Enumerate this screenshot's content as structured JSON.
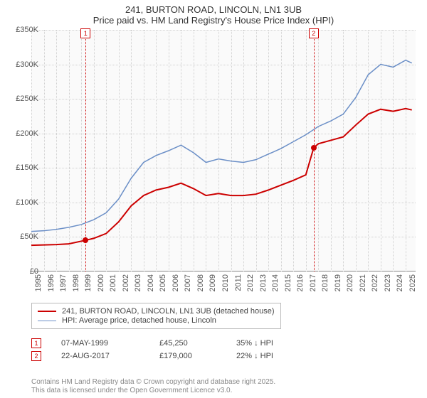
{
  "title": {
    "line1": "241, BURTON ROAD, LINCOLN, LN1 3UB",
    "line2": "Price paid vs. HM Land Registry's House Price Index (HPI)",
    "fontsize": 13,
    "color": "#333333"
  },
  "chart": {
    "type": "line",
    "background_color": "#fafafa",
    "grid_color": "#d0d0d0",
    "x_axis": {
      "min": 1995,
      "max": 2025.8,
      "ticks": [
        1995,
        1996,
        1997,
        1998,
        1999,
        2000,
        2001,
        2002,
        2003,
        2004,
        2005,
        2006,
        2007,
        2008,
        2009,
        2010,
        2011,
        2012,
        2013,
        2014,
        2015,
        2016,
        2017,
        2018,
        2019,
        2020,
        2021,
        2022,
        2023,
        2024,
        2025
      ],
      "tick_fontsize": 11,
      "tick_color": "#555555"
    },
    "y_axis": {
      "min": 0,
      "max": 350000,
      "ticks": [
        0,
        50000,
        100000,
        150000,
        200000,
        250000,
        300000,
        350000
      ],
      "tick_labels": [
        "£0",
        "£50K",
        "£100K",
        "£150K",
        "£200K",
        "£250K",
        "£300K",
        "£350K"
      ],
      "tick_fontsize": 11,
      "tick_color": "#555555"
    },
    "series": [
      {
        "name": "price_paid",
        "label": "241, BURTON ROAD, LINCOLN, LN1 3UB (detached house)",
        "color": "#cc0000",
        "line_width": 2,
        "data": [
          [
            1995,
            38000
          ],
          [
            1996,
            38500
          ],
          [
            1997,
            39000
          ],
          [
            1998,
            40000
          ],
          [
            1999.35,
            45250
          ],
          [
            2000,
            48000
          ],
          [
            2001,
            55000
          ],
          [
            2002,
            72000
          ],
          [
            2003,
            95000
          ],
          [
            2004,
            110000
          ],
          [
            2005,
            118000
          ],
          [
            2006,
            122000
          ],
          [
            2007,
            128000
          ],
          [
            2008,
            120000
          ],
          [
            2009,
            110000
          ],
          [
            2010,
            113000
          ],
          [
            2011,
            110000
          ],
          [
            2012,
            110000
          ],
          [
            2013,
            112000
          ],
          [
            2014,
            118000
          ],
          [
            2015,
            125000
          ],
          [
            2016,
            132000
          ],
          [
            2017,
            140000
          ],
          [
            2017.63,
            179000
          ],
          [
            2018,
            185000
          ],
          [
            2019,
            190000
          ],
          [
            2020,
            195000
          ],
          [
            2021,
            212000
          ],
          [
            2022,
            228000
          ],
          [
            2023,
            235000
          ],
          [
            2024,
            232000
          ],
          [
            2025,
            236000
          ],
          [
            2025.5,
            234000
          ]
        ]
      },
      {
        "name": "hpi",
        "label": "HPI: Average price, detached house, Lincoln",
        "color": "#6b8fc7",
        "line_width": 1.5,
        "data": [
          [
            1995,
            58000
          ],
          [
            1996,
            59000
          ],
          [
            1997,
            61000
          ],
          [
            1998,
            64000
          ],
          [
            1999,
            68000
          ],
          [
            2000,
            75000
          ],
          [
            2001,
            85000
          ],
          [
            2002,
            105000
          ],
          [
            2003,
            135000
          ],
          [
            2004,
            158000
          ],
          [
            2005,
            168000
          ],
          [
            2006,
            175000
          ],
          [
            2007,
            183000
          ],
          [
            2008,
            172000
          ],
          [
            2009,
            158000
          ],
          [
            2010,
            163000
          ],
          [
            2011,
            160000
          ],
          [
            2012,
            158000
          ],
          [
            2013,
            162000
          ],
          [
            2014,
            170000
          ],
          [
            2015,
            178000
          ],
          [
            2016,
            188000
          ],
          [
            2017,
            198000
          ],
          [
            2018,
            210000
          ],
          [
            2019,
            218000
          ],
          [
            2020,
            228000
          ],
          [
            2021,
            252000
          ],
          [
            2022,
            285000
          ],
          [
            2023,
            300000
          ],
          [
            2024,
            296000
          ],
          [
            2025,
            306000
          ],
          [
            2025.5,
            302000
          ]
        ]
      }
    ],
    "markers": [
      {
        "id": "1",
        "x": 1999.35,
        "y": 45250,
        "color": "#cc0000",
        "date": "07-MAY-1999",
        "price": "£45,250",
        "delta": "35% ↓ HPI"
      },
      {
        "id": "2",
        "x": 2017.63,
        "y": 179000,
        "color": "#cc0000",
        "date": "22-AUG-2017",
        "price": "£179,000",
        "delta": "22% ↓ HPI"
      }
    ]
  },
  "legend": {
    "border_color": "#bbbbbb",
    "fontsize": 11
  },
  "footer": {
    "line1": "Contains HM Land Registry data © Crown copyright and database right 2025.",
    "line2": "This data is licensed under the Open Government Licence v3.0.",
    "fontsize": 10,
    "color": "#888888"
  }
}
